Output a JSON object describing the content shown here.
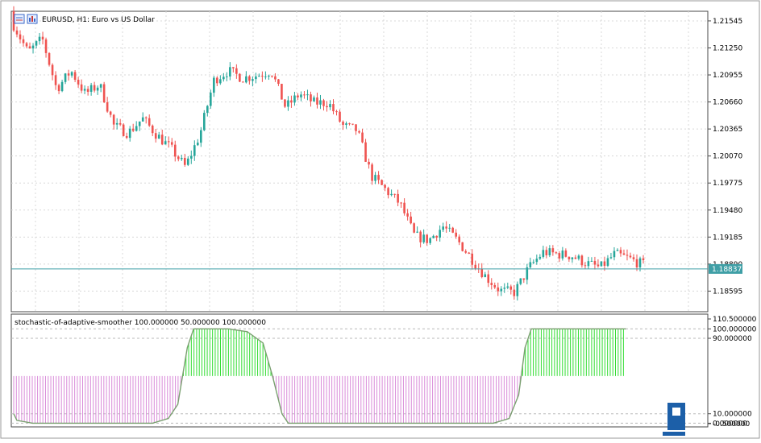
{
  "window": {
    "symbol_label": "EURUSD, H1:  Euro vs US Dollar",
    "current_price_label": "1.18837"
  },
  "colors": {
    "bull": "#26a69a",
    "bear": "#ef5350",
    "price_line": "#3f9fa6",
    "osc_high": "#33dd33",
    "osc_low": "#d98bd9",
    "grid": "#d8d8d8"
  },
  "chart_data": [
    {
      "type": "candlestick",
      "title": "EURUSD, H1:  Euro vs US Dollar",
      "y_ticks": [
        "1.21545",
        "1.21250",
        "1.20955",
        "1.20660",
        "1.20365",
        "1.20070",
        "1.19775",
        "1.19480",
        "1.19185",
        "1.18890",
        "1.18595"
      ],
      "ylim": [
        1.1837,
        1.2165
      ],
      "current_price": 1.18837,
      "close_path": [
        1.215,
        1.212,
        1.2135,
        1.208,
        1.21,
        1.2075,
        1.2085,
        1.204,
        1.2032,
        1.2048,
        1.203,
        1.2015,
        1.1995,
        1.203,
        1.209,
        1.21,
        1.2092,
        1.2095,
        1.21,
        1.206,
        1.2075,
        1.2065,
        1.2065,
        1.204,
        1.2035,
        1.1985,
        1.197,
        1.1955,
        1.192,
        1.1915,
        1.193,
        1.1915,
        1.1895,
        1.1875,
        1.186,
        1.1858,
        1.1885,
        1.1902,
        1.19,
        1.1898,
        1.189,
        1.1885,
        1.19,
        1.1895,
        1.1888
      ]
    },
    {
      "type": "bar",
      "title": "stochastic-of-adaptive-smoother 100.000000 50.000000 100.000000",
      "y_ticks": [
        "110.500000",
        "100.000000",
        "90.000000",
        "10.000000",
        "0.000000",
        "-0.500000"
      ],
      "ylim": [
        -0.5,
        110.5
      ],
      "levels": [
        100,
        90,
        10,
        0
      ],
      "low_segments": [
        [
          0,
          0.26
        ],
        [
          0.435,
          0.8
        ]
      ],
      "high_segments": [
        [
          0.285,
          0.41
        ],
        [
          0.81,
          0.97
        ]
      ],
      "line_points": [
        [
          0.0,
          10
        ],
        [
          0.005,
          3
        ],
        [
          0.03,
          0
        ],
        [
          0.22,
          0
        ],
        [
          0.245,
          5
        ],
        [
          0.26,
          20
        ],
        [
          0.275,
          80
        ],
        [
          0.285,
          100
        ],
        [
          0.34,
          100
        ],
        [
          0.37,
          97
        ],
        [
          0.395,
          85
        ],
        [
          0.41,
          50
        ],
        [
          0.425,
          10
        ],
        [
          0.435,
          0
        ],
        [
          0.76,
          0
        ],
        [
          0.785,
          5
        ],
        [
          0.8,
          30
        ],
        [
          0.81,
          80
        ],
        [
          0.82,
          100
        ],
        [
          0.97,
          100
        ]
      ]
    }
  ]
}
